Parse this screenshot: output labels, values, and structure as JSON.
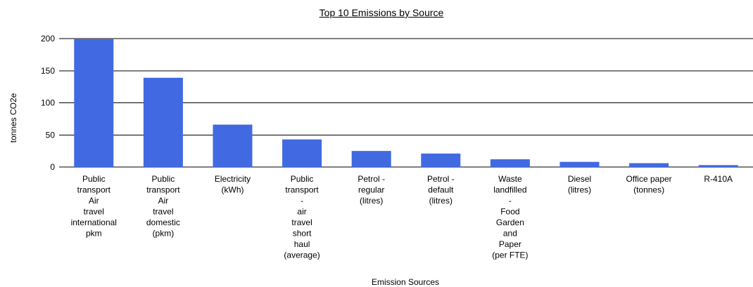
{
  "chart_data": {
    "type": "bar",
    "title": "Top 10 Emissions by Source",
    "xlabel": "Emission Sources",
    "ylabel": "tonnes CO2e",
    "ylim": [
      0,
      200
    ],
    "yticks": [
      0,
      50,
      100,
      150,
      200
    ],
    "grid": true,
    "bar_color": "#4169E1",
    "categories": [
      "Public transport Air travel international pkm",
      "Public transport Air travel domestic (pkm)",
      "Electricity (kWh)",
      "Public transport - air travel short haul (average)",
      "Petrol - regular (litres)",
      "Petrol - default (litres)",
      "Waste landfilled - Food Garden and Paper (per FTE)",
      "Diesel (litres)",
      "Office paper (tonnes)",
      "R-410A"
    ],
    "category_label_lines": [
      [
        "Public",
        "transport",
        "Air",
        "travel",
        "international",
        "pkm"
      ],
      [
        "Public",
        "transport",
        "Air",
        "travel",
        "domestic",
        "(pkm)"
      ],
      [
        "Electricity",
        "(kWh)"
      ],
      [
        "Public",
        "transport",
        "-",
        "air",
        "travel",
        "short",
        "haul",
        "(average)"
      ],
      [
        "Petrol -",
        "regular",
        "(litres)"
      ],
      [
        "Petrol -",
        "default",
        "(litres)"
      ],
      [
        "Waste",
        "landfilled",
        "-",
        "Food",
        "Garden",
        "and",
        "Paper",
        "(per FTE)"
      ],
      [
        "Diesel",
        "(litres)"
      ],
      [
        "Office paper",
        "(tonnes)"
      ],
      [
        "R-410A"
      ]
    ],
    "values": [
      199,
      139,
      66,
      43,
      25,
      21,
      12,
      8,
      6,
      3
    ]
  }
}
